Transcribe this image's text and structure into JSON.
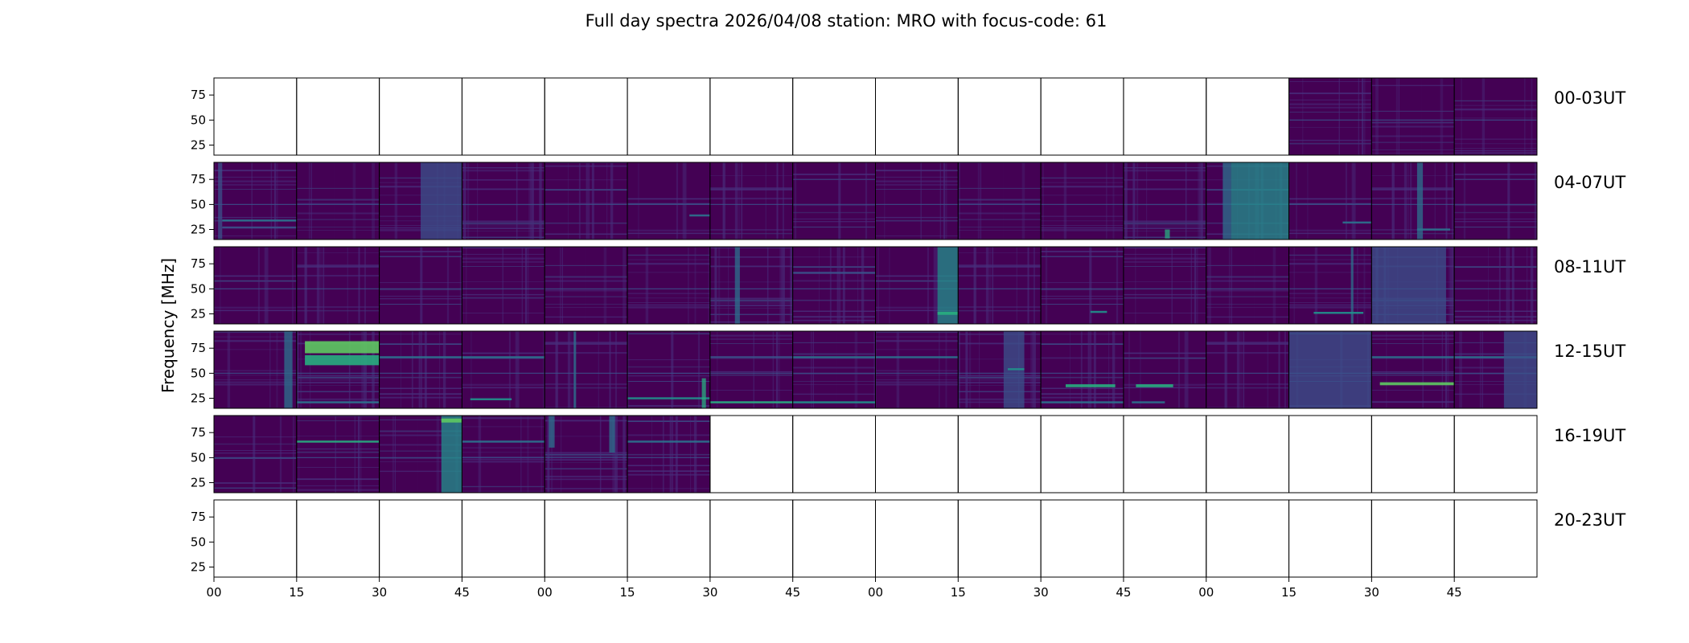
{
  "chart_data": {
    "type": "heatmap",
    "title": "Full day spectra 2026/04/08 station: MRO with focus-code: 61",
    "ylabel": "Frequency [MHz]",
    "ylim": [
      15,
      92
    ],
    "yticks": [
      "75",
      "50",
      "25"
    ],
    "ytick_values": [
      75,
      50,
      25
    ],
    "xticks": [
      "00",
      "15",
      "30",
      "45",
      "00",
      "15",
      "30",
      "45",
      "00",
      "15",
      "30",
      "45",
      "00",
      "15",
      "30",
      "45"
    ],
    "panels_per_row": 16,
    "panel_minutes": 15,
    "colormap": [
      "#440154",
      "#472d7b",
      "#3b528b",
      "#2c728e",
      "#21918c",
      "#28ae80",
      "#5ec962"
    ],
    "rows": [
      {
        "label": "00-03UT",
        "available": [
          0,
          0,
          0,
          0,
          0,
          0,
          0,
          0,
          0,
          0,
          0,
          0,
          0,
          1,
          1,
          1
        ]
      },
      {
        "label": "04-07UT",
        "available": [
          1,
          1,
          1,
          1,
          1,
          1,
          1,
          1,
          1,
          1,
          1,
          1,
          1,
          1,
          1,
          1
        ]
      },
      {
        "label": "08-11UT",
        "available": [
          1,
          1,
          1,
          1,
          1,
          1,
          1,
          1,
          1,
          1,
          1,
          1,
          1,
          1,
          1,
          1
        ]
      },
      {
        "label": "12-15UT",
        "available": [
          1,
          1,
          1,
          1,
          1,
          1,
          1,
          1,
          1,
          1,
          1,
          1,
          1,
          1,
          1,
          1
        ]
      },
      {
        "label": "16-19UT",
        "available": [
          1,
          1,
          1,
          1,
          1,
          1,
          0,
          0,
          0,
          0,
          0,
          0,
          0,
          0,
          0,
          0
        ]
      },
      {
        "label": "20-23UT",
        "available": [
          0,
          0,
          0,
          0,
          0,
          0,
          0,
          0,
          0,
          0,
          0,
          0,
          0,
          0,
          0,
          0
        ]
      }
    ]
  }
}
